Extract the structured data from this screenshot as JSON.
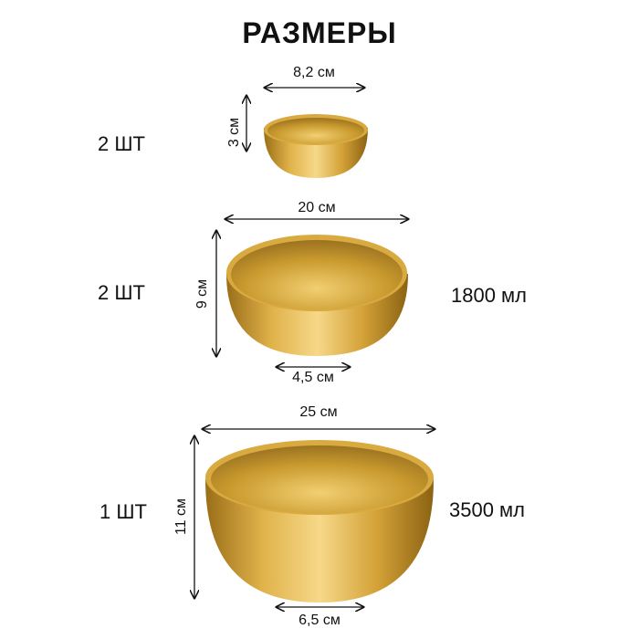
{
  "title": "РАЗМЕРЫ",
  "bowls": [
    {
      "quantity": "2 ШТ",
      "diameter": "8,2 см",
      "height": "3 см"
    },
    {
      "quantity": "2 ШТ",
      "diameter": "20 см",
      "height": "9 см",
      "base": "4,5 см",
      "volume": "1800 мл"
    },
    {
      "quantity": "1 ШТ",
      "diameter": "25 см",
      "height": "11 см",
      "base": "6,5 см",
      "volume": "3500 мл"
    }
  ],
  "colors": {
    "gold_light": "#f3d27a",
    "gold_mid": "#c99a2e",
    "gold_dark": "#8a6212"
  }
}
